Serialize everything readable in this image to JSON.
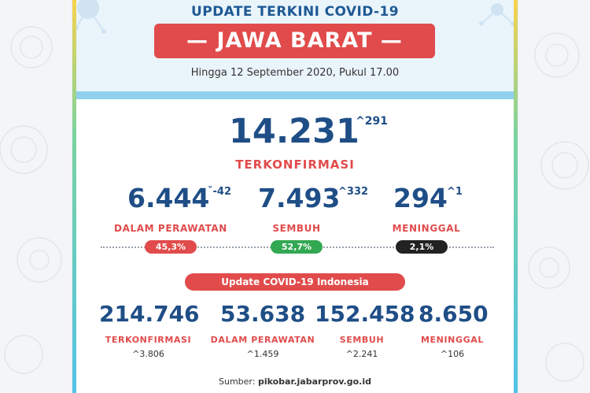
{
  "header": {
    "title": "UPDATE TERKINI COVID-19",
    "region": "— JAWA BARAT —",
    "date": "Hingga 12 September 2020, Pukul 17.00"
  },
  "jabar": {
    "confirmed": {
      "value": "14.231",
      "delta": "^291",
      "label": "TERKONFIRMASI"
    },
    "treatment": {
      "value": "6.444",
      "delta": "ˇ-42",
      "label": "DALAM PERAWATAN",
      "percent": "45,3%"
    },
    "recovered": {
      "value": "7.493",
      "delta": "^332",
      "label": "SEMBUH",
      "percent": "52,7%"
    },
    "deaths": {
      "value": "294",
      "delta": "^1",
      "label": "MENINGGAL",
      "percent": "2,1%"
    }
  },
  "indonesia": {
    "title": "Update COVID-19 Indonesia",
    "stats": [
      {
        "value": "214.746",
        "label": "TERKONFIRMASI",
        "delta": "^3.806"
      },
      {
        "value": "53.638",
        "label": "DALAM PERAWATAN",
        "delta": "^1.459"
      },
      {
        "value": "152.458",
        "label": "SEMBUH",
        "delta": "^2.241"
      },
      {
        "value": "8.650",
        "label": "MENINGGAL",
        "delta": "^106"
      }
    ]
  },
  "source": {
    "prefix": "Sumber: ",
    "site": "pikobar.jabarprov.go.id"
  },
  "colors": {
    "primary": "#1f4e86",
    "accent_red": "#e14b4b",
    "recovered_green": "#33a853",
    "death_black": "#222222"
  },
  "icons": [
    "virus-icon"
  ]
}
